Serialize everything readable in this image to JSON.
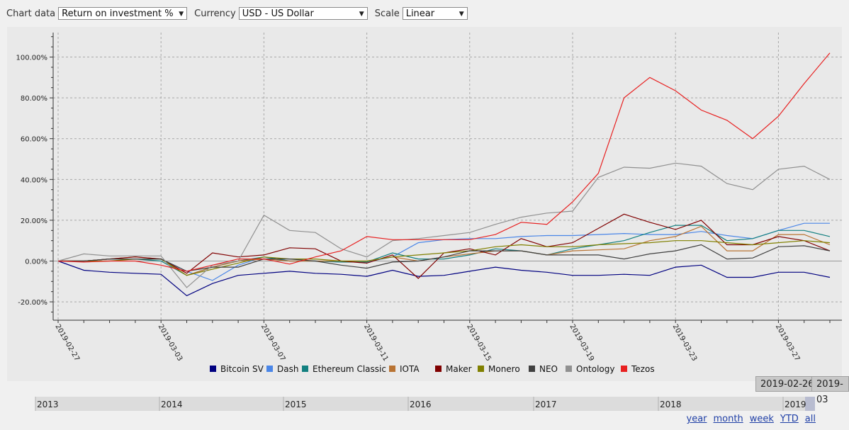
{
  "controls": {
    "chart_data_label": "Chart data",
    "chart_data_value": "Return on investment %",
    "currency_label": "Currency",
    "currency_value": "USD - US Dollar",
    "scale_label": "Scale",
    "scale_value": "Linear"
  },
  "colors": {
    "Bitcoin SV": "#000080",
    "Dash": "#4a86e8",
    "Ethereum Classic": "#138080",
    "IOTA": "#b87333",
    "Maker": "#800000",
    "Monero": "#808000",
    "NEO": "#404040",
    "Ontology": "#909090",
    "Tezos": "#e82020"
  },
  "chart_data": {
    "type": "line",
    "x": [
      "2019-02-27",
      "2019-02-28",
      "2019-03-01",
      "2019-03-02",
      "2019-03-03",
      "2019-03-04",
      "2019-03-05",
      "2019-03-06",
      "2019-03-07",
      "2019-03-08",
      "2019-03-09",
      "2019-03-10",
      "2019-03-11",
      "2019-03-12",
      "2019-03-13",
      "2019-03-14",
      "2019-03-15",
      "2019-03-16",
      "2019-03-17",
      "2019-03-18",
      "2019-03-19",
      "2019-03-20",
      "2019-03-21",
      "2019-03-22",
      "2019-03-23",
      "2019-03-24",
      "2019-03-25",
      "2019-03-26",
      "2019-03-27",
      "2019-03-28",
      "2019-03-29"
    ],
    "x_tick_labels": [
      "2019-02-27",
      "2019-03-03",
      "2019-03-07",
      "2019-03-11",
      "2019-03-15",
      "2019-03-19",
      "2019-03-23",
      "2019-03-27"
    ],
    "y_tick_labels": [
      "-20.00%",
      "0.00%",
      "20.00%",
      "40.00%",
      "60.00%",
      "80.00%",
      "100.00%"
    ],
    "ylim": [
      -29,
      112
    ],
    "grid": true,
    "legend_position": "bottom",
    "series": [
      {
        "name": "Bitcoin SV",
        "values": [
          0,
          -4.5,
          -5.5,
          -6,
          -6.5,
          -17,
          -11,
          -7,
          -6,
          -5,
          -6,
          -6.5,
          -7.5,
          -4.5,
          -7.5,
          -7,
          -5,
          -3,
          -4.5,
          -5.5,
          -7,
          -7,
          -6.5,
          -7,
          -3,
          -2,
          -8,
          -8,
          -5.5,
          -5.5,
          -8
        ]
      },
      {
        "name": "Dash",
        "values": [
          0,
          0,
          1,
          1,
          1,
          -5,
          -9.5,
          -2,
          2,
          0,
          0,
          -0.5,
          -0.5,
          2,
          9,
          10.5,
          11,
          11,
          12,
          12.5,
          12.5,
          13,
          13.5,
          13,
          13,
          14.5,
          12.5,
          11,
          15,
          18.5,
          18.5
        ]
      },
      {
        "name": "Ethereum Classic",
        "values": [
          0,
          0,
          1,
          1,
          0,
          -7,
          -3,
          0,
          2,
          0,
          0,
          -0.5,
          -0.5,
          4,
          1,
          1,
          3,
          6,
          5,
          3,
          6,
          8,
          10,
          14,
          17.5,
          17.5,
          10,
          11,
          15,
          15,
          12
        ]
      },
      {
        "name": "IOTA",
        "values": [
          0,
          0,
          1,
          2,
          1,
          -7,
          -3,
          0,
          1,
          0,
          0,
          0,
          0,
          2,
          0,
          2,
          3.5,
          5,
          5,
          3,
          5,
          5.5,
          6,
          10,
          12,
          17,
          5,
          5,
          13,
          13,
          8
        ]
      },
      {
        "name": "Maker",
        "values": [
          0,
          0,
          1,
          2,
          1,
          -6,
          4,
          2,
          3,
          6.5,
          6,
          0,
          -1,
          3,
          -8.5,
          4,
          6,
          3,
          11,
          7,
          9,
          16,
          23,
          19,
          15.5,
          20,
          8,
          8,
          12,
          10,
          5
        ]
      },
      {
        "name": "Monero",
        "values": [
          0,
          0,
          0,
          1,
          1,
          -7,
          -4,
          -1,
          2,
          1,
          1,
          0,
          0,
          2,
          3,
          4,
          5,
          7,
          8,
          7,
          7,
          8,
          8.5,
          9,
          10,
          10,
          9,
          8,
          9,
          10,
          9
        ]
      },
      {
        "name": "NEO",
        "values": [
          0,
          0,
          1,
          1,
          1,
          -5,
          -3,
          -3,
          1,
          1,
          0,
          -2,
          -3.5,
          -0.5,
          0,
          2,
          5,
          5,
          5,
          3,
          3,
          3,
          1,
          3.5,
          5,
          8,
          1,
          1.5,
          7,
          7.5,
          5
        ]
      },
      {
        "name": "Ontology",
        "values": [
          0,
          3.5,
          2.5,
          2.5,
          2.5,
          -13,
          -2,
          0,
          22.5,
          15,
          14,
          6,
          2,
          10,
          11,
          12.5,
          14,
          18,
          21.5,
          23.5,
          24.5,
          41,
          46,
          45.5,
          48,
          46.5,
          38,
          35,
          45,
          46.5,
          40
        ]
      },
      {
        "name": "Tezos",
        "values": [
          0,
          -0.5,
          0,
          0,
          -2,
          -5,
          -2,
          1,
          1,
          -1.5,
          2,
          5,
          12,
          10.5,
          10.5,
          10.5,
          10.5,
          13,
          19,
          18,
          29,
          43,
          80,
          90,
          83.5,
          74,
          69,
          60,
          71,
          87,
          102
        ]
      }
    ]
  },
  "navigator": {
    "years": [
      "2013",
      "2014",
      "2015",
      "2016",
      "2017",
      "2018",
      "2019"
    ],
    "range_start": "2019-02-26",
    "range_end": "2019-03"
  },
  "period_links": [
    "year",
    "month",
    "week",
    "YTD",
    "all"
  ]
}
